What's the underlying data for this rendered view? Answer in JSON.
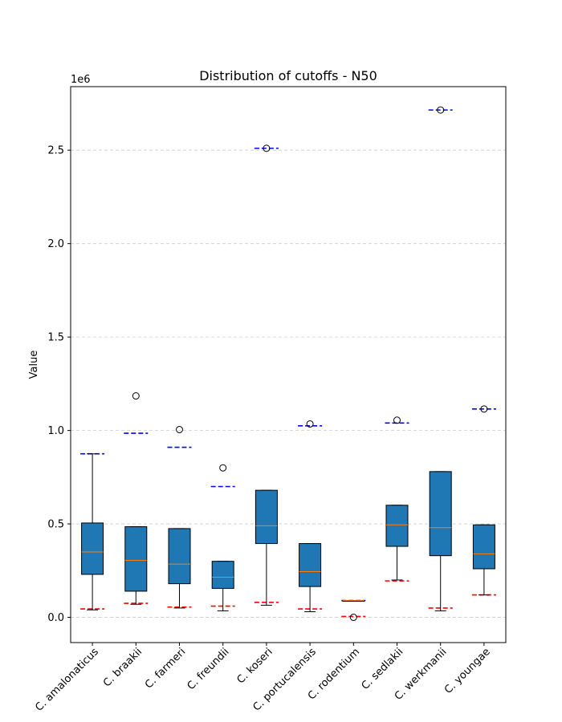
{
  "chart_data": {
    "type": "box",
    "title": "Distribution of cutoffs - N50",
    "xlabel": "",
    "ylabel": "Value",
    "y_offset_label": "1e6",
    "y_scale_factor": 1000000,
    "ylim": [
      -0.135,
      2.84
    ],
    "yticks": [
      0.0,
      0.5,
      1.0,
      1.5,
      2.0,
      2.5
    ],
    "ytick_labels": [
      "0.0",
      "0.5",
      "1.0",
      "1.5",
      "2.0",
      "2.5"
    ],
    "grid": "y-dashed",
    "categories": [
      "C. amalonaticus",
      "C. braakii",
      "C. farmeri",
      "C. freundii",
      "C. koseri",
      "C. portucalensis",
      "C. rodentium",
      "C. sedlakii",
      "C. werkmanii",
      "C. youngae"
    ],
    "boxes": [
      {
        "whisker_low": 0.04,
        "q1": 0.23,
        "median": 0.35,
        "q3": 0.505,
        "whisker_high": 0.875,
        "outliers": []
      },
      {
        "whisker_low": 0.07,
        "q1": 0.14,
        "median": 0.305,
        "q3": 0.485,
        "whisker_high": 0.485,
        "outliers": [
          1.185
        ]
      },
      {
        "whisker_low": 0.05,
        "q1": 0.18,
        "median": 0.285,
        "q3": 0.475,
        "whisker_high": 0.475,
        "outliers": [
          1.005
        ]
      },
      {
        "whisker_low": 0.035,
        "q1": 0.155,
        "median": 0.215,
        "q3": 0.3,
        "whisker_high": 0.3,
        "outliers": [
          0.8
        ]
      },
      {
        "whisker_low": 0.065,
        "q1": 0.395,
        "median": 0.49,
        "q3": 0.68,
        "whisker_high": 0.68,
        "outliers": [
          2.51
        ]
      },
      {
        "whisker_low": 0.03,
        "q1": 0.165,
        "median": 0.245,
        "q3": 0.395,
        "whisker_high": 0.395,
        "outliers": [
          1.035
        ]
      },
      {
        "whisker_low": 0.09,
        "q1": 0.09,
        "median": 0.09,
        "q3": 0.09,
        "whisker_high": 0.09,
        "outliers": [
          0.0
        ]
      },
      {
        "whisker_low": 0.2,
        "q1": 0.38,
        "median": 0.495,
        "q3": 0.6,
        "whisker_high": 0.6,
        "outliers": [
          1.055
        ]
      },
      {
        "whisker_low": 0.035,
        "q1": 0.33,
        "median": 0.48,
        "q3": 0.78,
        "whisker_high": 0.78,
        "outliers": [
          2.715
        ]
      },
      {
        "whisker_low": 0.12,
        "q1": 0.26,
        "median": 0.34,
        "q3": 0.495,
        "whisker_high": 0.495,
        "outliers": [
          1.115
        ]
      }
    ],
    "cutoff_low": [
      0.045,
      0.075,
      0.055,
      0.06,
      0.08,
      0.045,
      0.005,
      0.195,
      0.05,
      0.12
    ],
    "cutoff_high": [
      0.875,
      0.985,
      0.91,
      0.7,
      2.51,
      1.025,
      0.09,
      1.04,
      2.715,
      1.115
    ],
    "colors": {
      "box_fill": "#1f77b4",
      "median": "#ff7f0e",
      "cutoff_low": "#ff0000",
      "cutoff_high": "#0000ff",
      "grid": "#cccccc"
    }
  }
}
